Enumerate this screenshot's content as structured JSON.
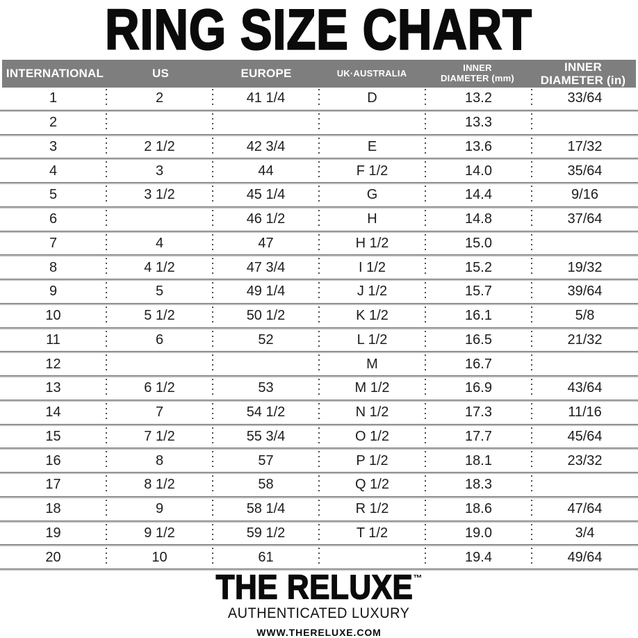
{
  "page": {
    "title": "RING SIZE CHART"
  },
  "table": {
    "headers": [
      {
        "line1": "INTERNATIONAL",
        "line2": ""
      },
      {
        "line1": "US",
        "line2": ""
      },
      {
        "line1": "EUROPE",
        "line2": ""
      },
      {
        "line1": "UK·AUSTRALIA",
        "line2": ""
      },
      {
        "line1": "INNER",
        "line2": "DIAMETER (mm)"
      },
      {
        "line1": "INNER",
        "line2": "DIAMETER (in)"
      }
    ]
  },
  "chart_data": {
    "type": "table",
    "title": "RING SIZE CHART",
    "columns": [
      "INTERNATIONAL",
      "US",
      "EUROPE",
      "UK·AUSTRALIA",
      "INNER DIAMETER (mm)",
      "INNER DIAMETER (in)"
    ],
    "rows": [
      [
        "1",
        "2",
        "41 1/4",
        "D",
        "13.2",
        "33/64"
      ],
      [
        "2",
        "",
        "",
        "",
        "13.3",
        ""
      ],
      [
        "3",
        "2 1/2",
        "42 3/4",
        "E",
        "13.6",
        "17/32"
      ],
      [
        "4",
        "3",
        "44",
        "F 1/2",
        "14.0",
        "35/64"
      ],
      [
        "5",
        "3 1/2",
        "45 1/4",
        "G",
        "14.4",
        "9/16"
      ],
      [
        "6",
        "",
        "46 1/2",
        "H",
        "14.8",
        "37/64"
      ],
      [
        "7",
        "4",
        "47",
        "H 1/2",
        "15.0",
        ""
      ],
      [
        "8",
        "4 1/2",
        "47 3/4",
        "I 1/2",
        "15.2",
        "19/32"
      ],
      [
        "9",
        "5",
        "49 1/4",
        "J 1/2",
        "15.7",
        "39/64"
      ],
      [
        "10",
        "5 1/2",
        "50 1/2",
        "K 1/2",
        "16.1",
        "5/8"
      ],
      [
        "11",
        "6",
        "52",
        "L 1/2",
        "16.5",
        "21/32"
      ],
      [
        "12",
        "",
        "",
        "M",
        "16.7",
        ""
      ],
      [
        "13",
        "6 1/2",
        "53",
        "M 1/2",
        "16.9",
        "43/64"
      ],
      [
        "14",
        "7",
        "54 1/2",
        "N 1/2",
        "17.3",
        "11/16"
      ],
      [
        "15",
        "7 1/2",
        "55 3/4",
        "O 1/2",
        "17.7",
        "45/64"
      ],
      [
        "16",
        "8",
        "57",
        "P 1/2",
        "18.1",
        "23/32"
      ],
      [
        "17",
        "8 1/2",
        "58",
        "Q 1/2",
        "18.3",
        ""
      ],
      [
        "18",
        "9",
        "58 1/4",
        "R 1/2",
        "18.6",
        "47/64"
      ],
      [
        "19",
        "9 1/2",
        "59 1/2",
        "T 1/2",
        "19.0",
        "3/4"
      ],
      [
        "20",
        "10",
        "61",
        "",
        "19.4",
        "49/64"
      ]
    ]
  },
  "footer": {
    "brand": "THE RELUXE",
    "trademark": "™",
    "tagline": "AUTHENTICATED LUXURY",
    "website": "WWW.THERELUXE.COM"
  },
  "colors": {
    "header_bg": "#7e7e7e",
    "header_text": "#ffffff",
    "body_text": "#1c1c1c",
    "rule_dark": "#6e6e6e",
    "rule_light": "#bcbcbc",
    "dotted_separator": "#4c4c4c"
  }
}
